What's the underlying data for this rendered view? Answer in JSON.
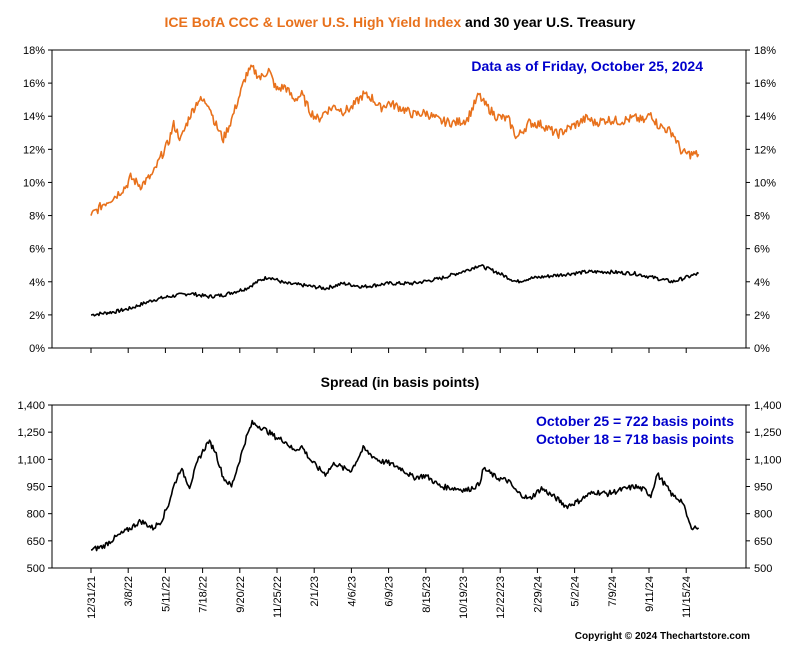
{
  "title": {
    "part1": "ICE BofA CCC & Lower U.S. High Yield Index",
    "part2": "and 30 year U.S. Treasury"
  },
  "top_note": "Data as of Friday, October 25, 2024",
  "spread_title": "Spread (in basis points)",
  "spread_notes": [
    "October 25 = 722 basis points",
    "October 18 = 718 basis points"
  ],
  "copyright": "Copyright © 2024 Thechartstore.com",
  "colors": {
    "ccc": "#e8711c",
    "treasury": "#000000",
    "spread": "#000000",
    "note": "#0000cc"
  },
  "chart_data": [
    {
      "type": "line",
      "title": "ICE BofA CCC & Lower U.S. High Yield Index and 30 year U.S. Treasury",
      "ylim": [
        0,
        18
      ],
      "yticks": [
        "0%",
        "2%",
        "4%",
        "6%",
        "8%",
        "10%",
        "12%",
        "14%",
        "16%",
        "18%"
      ],
      "xlim": [
        "2021-12-31",
        "2024-11-15"
      ],
      "legend": "none",
      "series": [
        {
          "name": "ICE BofA CCC & Lower U.S. High Yield Index",
          "x": [
            "2021-12-31",
            "2022-01-21",
            "2022-02-11",
            "2022-03-01",
            "2022-03-08",
            "2022-03-25",
            "2022-04-15",
            "2022-04-29",
            "2022-05-11",
            "2022-05-20",
            "2022-06-01",
            "2022-06-16",
            "2022-07-01",
            "2022-07-18",
            "2022-07-29",
            "2022-08-12",
            "2022-08-26",
            "2022-09-09",
            "2022-09-20",
            "2022-09-30",
            "2022-10-14",
            "2022-10-28",
            "2022-11-10",
            "2022-11-25",
            "2022-12-09",
            "2022-12-23",
            "2023-01-06",
            "2023-01-20",
            "2023-02-01",
            "2023-02-17",
            "2023-03-03",
            "2023-03-17",
            "2023-04-06",
            "2023-04-21",
            "2023-05-05",
            "2023-05-19",
            "2023-06-09",
            "2023-06-30",
            "2023-07-21",
            "2023-08-15",
            "2023-09-08",
            "2023-09-29",
            "2023-10-19",
            "2023-10-27",
            "2023-11-17",
            "2023-12-08",
            "2023-12-22",
            "2024-01-12",
            "2024-02-02",
            "2024-02-29",
            "2024-03-15",
            "2024-04-05",
            "2024-04-19",
            "2024-05-02",
            "2024-05-24",
            "2024-06-14",
            "2024-07-09",
            "2024-07-26",
            "2024-08-05",
            "2024-08-16",
            "2024-09-11",
            "2024-09-27",
            "2024-10-11",
            "2024-10-25"
          ],
          "y": [
            8.0,
            8.7,
            9.2,
            9.8,
            10.3,
            9.8,
            10.5,
            11.6,
            12.4,
            13.5,
            12.6,
            14.0,
            15.0,
            14.8,
            13.6,
            12.6,
            13.8,
            15.3,
            16.5,
            16.9,
            16.3,
            16.8,
            15.6,
            15.8,
            15.0,
            15.3,
            14.3,
            13.8,
            14.3,
            14.6,
            14.3,
            14.5,
            15.3,
            15.1,
            14.5,
            14.8,
            14.5,
            14.1,
            14.2,
            13.7,
            13.6,
            13.8,
            15.3,
            14.8,
            14.0,
            13.8,
            12.7,
            13.6,
            13.5,
            12.9,
            13.2,
            13.6,
            13.9,
            13.6,
            13.8,
            13.7,
            13.9,
            13.7,
            14.2,
            13.5,
            13.0,
            11.8,
            11.7,
            11.7
          ]
        },
        {
          "name": "30 year U.S. Treasury",
          "x": [
            "2021-12-31",
            "2022-01-21",
            "2022-02-11",
            "2022-03-08",
            "2022-04-15",
            "2022-05-11",
            "2022-06-16",
            "2022-07-18",
            "2022-08-12",
            "2022-09-20",
            "2022-10-14",
            "2022-10-28",
            "2022-11-25",
            "2022-12-23",
            "2023-02-01",
            "2023-03-03",
            "2023-04-06",
            "2023-05-19",
            "2023-06-30",
            "2023-08-15",
            "2023-09-29",
            "2023-10-19",
            "2023-11-17",
            "2023-12-22",
            "2024-01-12",
            "2024-02-29",
            "2024-04-19",
            "2024-05-24",
            "2024-07-09",
            "2024-08-16",
            "2024-09-11",
            "2024-10-25"
          ],
          "y": [
            2.0,
            2.1,
            2.2,
            2.4,
            2.9,
            3.1,
            3.3,
            3.1,
            3.2,
            3.6,
            4.1,
            4.3,
            3.9,
            3.8,
            3.6,
            3.9,
            3.7,
            3.9,
            3.9,
            4.2,
            4.7,
            5.0,
            4.6,
            4.0,
            4.2,
            4.4,
            4.6,
            4.6,
            4.5,
            4.2,
            4.0,
            4.5
          ]
        }
      ]
    },
    {
      "type": "line",
      "title": "Spread (in basis points)",
      "ylim": [
        500,
        1400
      ],
      "yticks": [
        "500",
        "650",
        "800",
        "950",
        "1,100",
        "1,250",
        "1,400"
      ],
      "xlim": [
        "2021-12-31",
        "2024-11-15"
      ],
      "x_tick_labels": [
        "12/31/21",
        "3/8/22",
        "5/11/22",
        "7/18/22",
        "9/20/22",
        "11/25/22",
        "2/1/23",
        "4/6/23",
        "6/9/23",
        "8/15/23",
        "10/19/23",
        "12/22/23",
        "2/29/24",
        "5/2/24",
        "7/9/24",
        "9/11/24",
        "11/15/24"
      ],
      "legend": "none",
      "series": [
        {
          "name": "Spread",
          "x": [
            "2021-12-31",
            "2022-01-21",
            "2022-02-11",
            "2022-03-08",
            "2022-03-25",
            "2022-04-15",
            "2022-04-29",
            "2022-05-11",
            "2022-05-20",
            "2022-06-01",
            "2022-06-16",
            "2022-07-01",
            "2022-07-18",
            "2022-07-29",
            "2022-08-12",
            "2022-08-26",
            "2022-09-09",
            "2022-09-20",
            "2022-09-30",
            "2022-10-14",
            "2022-10-28",
            "2022-11-10",
            "2022-11-25",
            "2022-12-09",
            "2022-12-23",
            "2023-01-06",
            "2023-01-20",
            "2023-02-01",
            "2023-02-17",
            "2023-03-03",
            "2023-03-17",
            "2023-04-06",
            "2023-04-21",
            "2023-05-05",
            "2023-05-19",
            "2023-06-09",
            "2023-06-30",
            "2023-07-21",
            "2023-08-15",
            "2023-09-08",
            "2023-09-29",
            "2023-10-19",
            "2023-10-27",
            "2023-11-17",
            "2023-12-08",
            "2023-12-22",
            "2024-01-12",
            "2024-02-02",
            "2024-02-29",
            "2024-03-15",
            "2024-04-05",
            "2024-04-19",
            "2024-05-02",
            "2024-05-24",
            "2024-06-14",
            "2024-07-09",
            "2024-07-26",
            "2024-08-05",
            "2024-08-16",
            "2024-09-11",
            "2024-09-27",
            "2024-10-11",
            "2024-10-25"
          ],
          "y": [
            600,
            620,
            670,
            720,
            760,
            720,
            760,
            850,
            950,
            1050,
            950,
            1100,
            1200,
            1150,
            1000,
            950,
            1100,
            1220,
            1300,
            1280,
            1250,
            1220,
            1200,
            1150,
            1170,
            1100,
            1050,
            1020,
            1080,
            1050,
            1040,
            1160,
            1120,
            1090,
            1080,
            1050,
            1000,
            1010,
            950,
            940,
            930,
            960,
            1050,
            1000,
            980,
            920,
            880,
            940,
            880,
            840,
            870,
            900,
            920,
            910,
            930,
            950,
            930,
            900,
            1020,
            900,
            870,
            730,
            722
          ]
        }
      ]
    }
  ]
}
